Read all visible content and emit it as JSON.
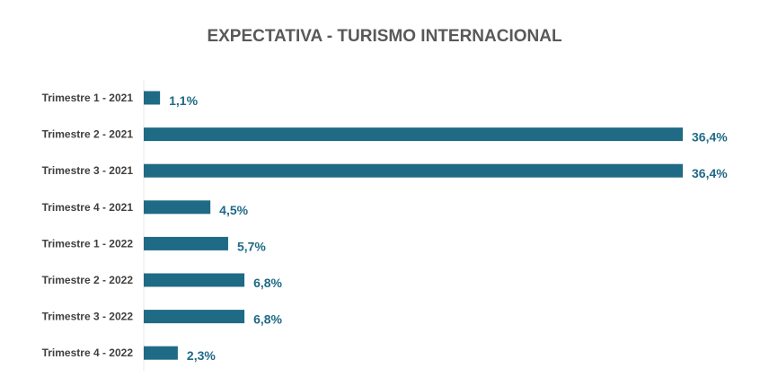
{
  "chart_data": {
    "type": "bar",
    "orientation": "horizontal",
    "title": "EXPECTATIVA - TURISMO INTERNACIONAL",
    "categories": [
      "Trimestre 1 - 2021",
      "Trimestre 2 - 2021",
      "Trimestre 3 - 2021",
      "Trimestre 4 - 2021",
      "Trimestre 1 - 2022",
      "Trimestre 2 - 2022",
      "Trimestre 3 - 2022",
      "Trimestre 4 - 2022"
    ],
    "values": [
      1.1,
      36.4,
      36.4,
      4.5,
      5.7,
      6.8,
      6.8,
      2.3
    ],
    "data_labels": [
      "1,1%",
      "36,4%",
      "36,4%",
      "4,5%",
      "5,7%",
      "6,8%",
      "6,8%",
      "2,3%"
    ],
    "xlabel": "",
    "ylabel": "",
    "xlim": [
      0,
      36.4
    ],
    "grid": false,
    "legend": "none",
    "bar_color": "#1f6a85"
  }
}
